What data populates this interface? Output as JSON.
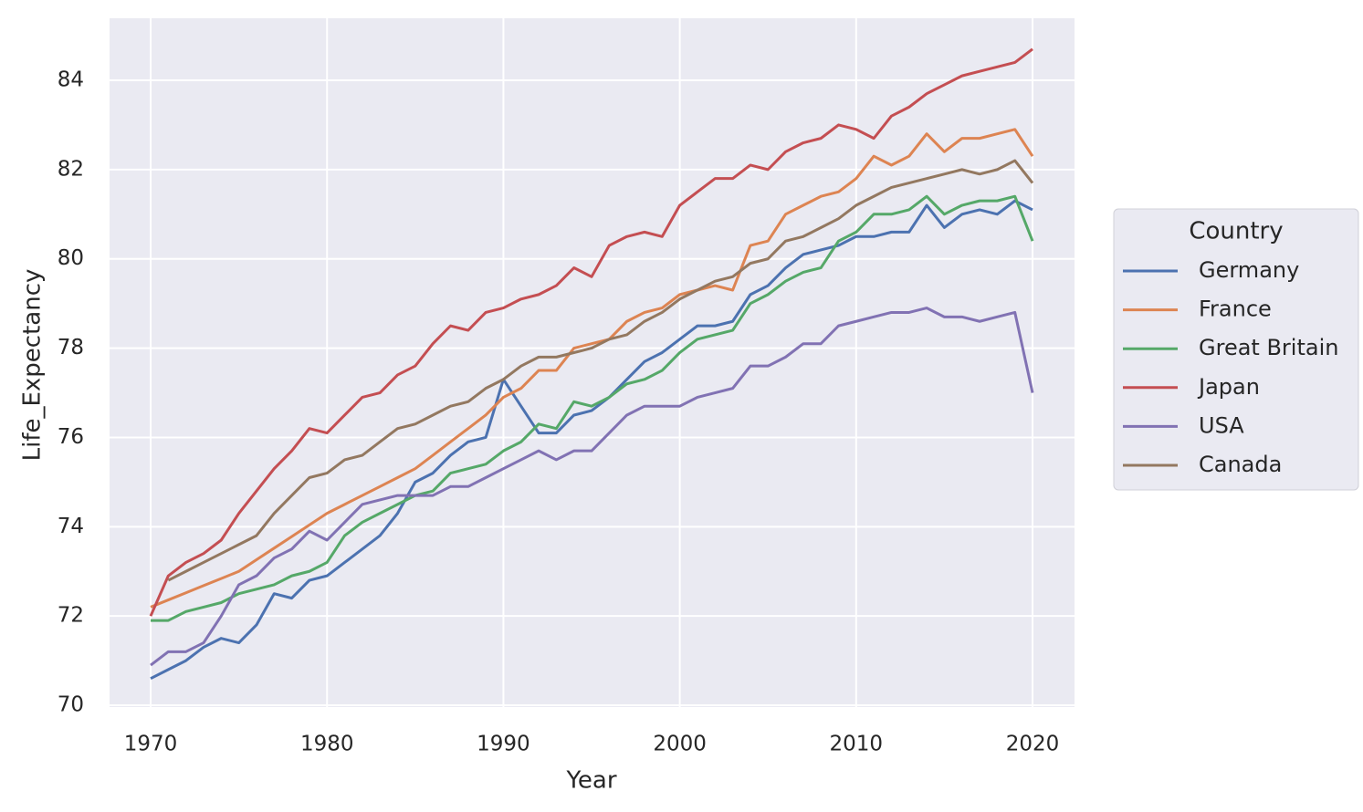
{
  "chart_data": {
    "type": "line",
    "x_label": "Year",
    "y_label": "Life_Expectancy",
    "x": [
      1970,
      1971,
      1972,
      1973,
      1974,
      1975,
      1976,
      1977,
      1978,
      1979,
      1980,
      1981,
      1982,
      1983,
      1984,
      1985,
      1986,
      1987,
      1988,
      1989,
      1990,
      1991,
      1992,
      1993,
      1994,
      1995,
      1996,
      1997,
      1998,
      1999,
      2000,
      2001,
      2002,
      2003,
      2004,
      2005,
      2006,
      2007,
      2008,
      2009,
      2010,
      2011,
      2012,
      2013,
      2014,
      2015,
      2016,
      2017,
      2018,
      2019,
      2020
    ],
    "series": [
      {
        "name": "Germany",
        "color": "#4c72b0",
        "values": [
          70.6,
          70.8,
          71.0,
          71.3,
          71.5,
          71.4,
          71.8,
          72.5,
          72.4,
          72.8,
          72.9,
          73.2,
          73.5,
          73.8,
          74.3,
          75.0,
          75.2,
          75.6,
          75.9,
          76.0,
          77.3,
          76.7,
          76.1,
          76.1,
          76.5,
          76.6,
          76.9,
          77.3,
          77.7,
          77.9,
          78.2,
          78.5,
          78.5,
          78.6,
          79.2,
          79.4,
          79.8,
          80.1,
          80.2,
          80.3,
          80.5,
          80.5,
          80.6,
          80.6,
          81.2,
          80.7,
          81.0,
          81.1,
          81.0,
          81.3,
          81.1
        ]
      },
      {
        "name": "France",
        "color": "#dd8452",
        "values": [
          72.2,
          72.36,
          72.52,
          72.68,
          72.84,
          73.0,
          73.26,
          73.52,
          73.78,
          74.04,
          74.3,
          74.5,
          74.7,
          74.9,
          75.1,
          75.3,
          75.6,
          75.9,
          76.2,
          76.5,
          76.9,
          77.1,
          77.5,
          77.5,
          78.0,
          78.1,
          78.2,
          78.6,
          78.8,
          78.9,
          79.2,
          79.3,
          79.4,
          79.3,
          80.3,
          80.4,
          81.0,
          81.2,
          81.4,
          81.5,
          81.8,
          82.3,
          82.1,
          82.3,
          82.8,
          82.4,
          82.7,
          82.7,
          82.8,
          82.9,
          82.3
        ]
      },
      {
        "name": "Great Britain",
        "color": "#55a868",
        "values": [
          71.9,
          71.9,
          72.1,
          72.2,
          72.3,
          72.5,
          72.6,
          72.7,
          72.9,
          73.0,
          73.2,
          73.8,
          74.1,
          74.3,
          74.5,
          74.7,
          74.8,
          75.2,
          75.3,
          75.4,
          75.7,
          75.9,
          76.3,
          76.2,
          76.8,
          76.7,
          76.9,
          77.2,
          77.3,
          77.5,
          77.9,
          78.2,
          78.3,
          78.4,
          79.0,
          79.2,
          79.5,
          79.7,
          79.8,
          80.4,
          80.6,
          81.0,
          81.0,
          81.1,
          81.4,
          81.0,
          81.2,
          81.3,
          81.3,
          81.4,
          80.4
        ]
      },
      {
        "name": "Japan",
        "color": "#c44e52",
        "values": [
          72.0,
          72.9,
          73.2,
          73.4,
          73.7,
          74.3,
          74.8,
          75.3,
          75.7,
          76.2,
          76.1,
          76.5,
          76.9,
          77.0,
          77.4,
          77.6,
          78.1,
          78.5,
          78.4,
          78.8,
          78.9,
          79.1,
          79.2,
          79.4,
          79.8,
          79.6,
          80.3,
          80.5,
          80.6,
          80.5,
          81.2,
          81.5,
          81.8,
          81.8,
          82.1,
          82.0,
          82.4,
          82.6,
          82.7,
          83.0,
          82.9,
          82.7,
          83.2,
          83.4,
          83.7,
          83.9,
          84.1,
          84.2,
          84.3,
          84.4,
          84.7
        ]
      },
      {
        "name": "USA",
        "color": "#8172b3",
        "values": [
          70.9,
          71.2,
          71.2,
          71.4,
          72.0,
          72.7,
          72.9,
          73.3,
          73.5,
          73.9,
          73.7,
          74.1,
          74.5,
          74.6,
          74.7,
          74.7,
          74.7,
          74.9,
          74.9,
          75.1,
          75.3,
          75.5,
          75.7,
          75.5,
          75.7,
          75.7,
          76.1,
          76.5,
          76.7,
          76.7,
          76.7,
          76.9,
          77.0,
          77.1,
          77.6,
          77.6,
          77.8,
          78.1,
          78.1,
          78.5,
          78.6,
          78.7,
          78.8,
          78.8,
          78.9,
          78.7,
          78.7,
          78.6,
          78.7,
          78.8,
          77.0
        ]
      },
      {
        "name": "Canada",
        "color": "#937860",
        "values": [
          null,
          72.8,
          73.0,
          73.2,
          73.4,
          73.6,
          73.8,
          74.3,
          74.7,
          75.1,
          75.2,
          75.5,
          75.6,
          75.9,
          76.2,
          76.3,
          76.5,
          76.7,
          76.8,
          77.1,
          77.3,
          77.6,
          77.8,
          77.8,
          77.9,
          78.0,
          78.2,
          78.3,
          78.6,
          78.8,
          79.1,
          79.3,
          79.5,
          79.6,
          79.9,
          80.0,
          80.4,
          80.5,
          80.7,
          80.9,
          81.2,
          81.4,
          81.6,
          81.7,
          81.8,
          81.9,
          82.0,
          81.9,
          82.0,
          82.2,
          81.7
        ]
      }
    ],
    "xlim": [
      1967.67,
      2022.38
    ],
    "xticks": [
      1970,
      1980,
      1990,
      2000,
      2010,
      2020
    ],
    "ylim": [
      69.96,
      85.39
    ],
    "yticks": [
      70,
      72,
      74,
      76,
      78,
      80,
      82,
      84
    ],
    "grid": true,
    "legend_title": "Country",
    "legend_position": "right"
  }
}
